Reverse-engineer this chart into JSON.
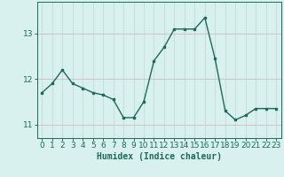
{
  "x": [
    0,
    1,
    2,
    3,
    4,
    5,
    6,
    7,
    8,
    9,
    10,
    11,
    12,
    13,
    14,
    15,
    16,
    17,
    18,
    19,
    20,
    21,
    22,
    23
  ],
  "y": [
    11.7,
    11.9,
    12.2,
    11.9,
    11.8,
    11.7,
    11.65,
    11.55,
    11.15,
    11.15,
    11.5,
    12.4,
    12.7,
    13.1,
    13.1,
    13.1,
    13.35,
    12.45,
    11.3,
    11.1,
    11.2,
    11.35,
    11.35,
    11.35
  ],
  "xlabel": "Humidex (Indice chaleur)",
  "xlim": [
    -0.5,
    23.5
  ],
  "ylim": [
    10.7,
    13.7
  ],
  "yticks": [
    11,
    12,
    13
  ],
  "xticks": [
    0,
    1,
    2,
    3,
    4,
    5,
    6,
    7,
    8,
    9,
    10,
    11,
    12,
    13,
    14,
    15,
    16,
    17,
    18,
    19,
    20,
    21,
    22,
    23
  ],
  "line_color": "#1a6b5a",
  "marker_color": "#1a6b5a",
  "bg_color": "#d8f0ee",
  "grid_color_h": "#d4b8b8",
  "grid_color_v": "#c0dbd8",
  "tick_color": "#1a6b5a",
  "label_fontsize": 7,
  "tick_fontsize": 6.5
}
